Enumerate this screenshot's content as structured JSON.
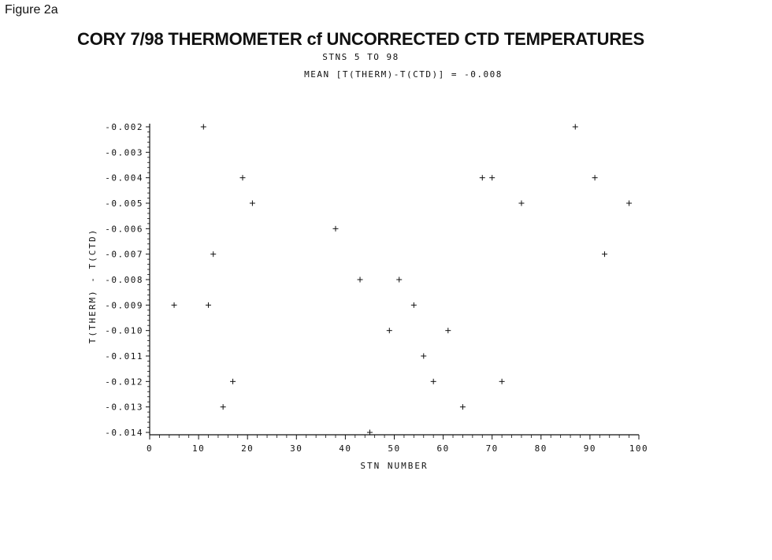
{
  "figure_label": "Figure 2a",
  "chart_data": {
    "type": "scatter",
    "title": "CORY 7/98 THERMOMETER cf UNCORRECTED CTD TEMPERATURES",
    "subtitle": "STNS 5 TO 98",
    "annotation": "MEAN [T(THERM)-T(CTD)] = -0.008",
    "xlabel": "STN NUMBER",
    "ylabel": "T(THERM) - T(CTD)",
    "xlim": [
      0,
      100
    ],
    "ylim": [
      -0.014,
      -0.002
    ],
    "x_ticks": [
      0,
      10,
      20,
      30,
      40,
      50,
      60,
      70,
      80,
      90,
      100
    ],
    "x_tick_labels": [
      "0",
      "10",
      "20",
      "30",
      "40",
      "50",
      "60",
      "70",
      "80",
      "90",
      "100"
    ],
    "y_ticks": [
      -0.002,
      -0.003,
      -0.004,
      -0.005,
      -0.006,
      -0.007,
      -0.008,
      -0.009,
      -0.01,
      -0.011,
      -0.012,
      -0.013,
      -0.014
    ],
    "y_tick_labels": [
      "-0.002",
      "-0.003",
      "-0.004",
      "-0.005",
      "-0.006",
      "-0.007",
      "-0.008",
      "-0.009",
      "-0.010",
      "-0.011",
      "-0.012",
      "-0.013",
      "-0.014"
    ],
    "marker": "+",
    "grid": false,
    "points": [
      {
        "x": 5,
        "y": -0.009
      },
      {
        "x": 11,
        "y": -0.002
      },
      {
        "x": 12,
        "y": -0.009
      },
      {
        "x": 13,
        "y": -0.007
      },
      {
        "x": 15,
        "y": -0.013
      },
      {
        "x": 17,
        "y": -0.012
      },
      {
        "x": 19,
        "y": -0.004
      },
      {
        "x": 21,
        "y": -0.005
      },
      {
        "x": 38,
        "y": -0.006
      },
      {
        "x": 43,
        "y": -0.008
      },
      {
        "x": 45,
        "y": -0.014
      },
      {
        "x": 49,
        "y": -0.01
      },
      {
        "x": 51,
        "y": -0.008
      },
      {
        "x": 54,
        "y": -0.009
      },
      {
        "x": 56,
        "y": -0.011
      },
      {
        "x": 58,
        "y": -0.012
      },
      {
        "x": 61,
        "y": -0.01
      },
      {
        "x": 64,
        "y": -0.013
      },
      {
        "x": 68,
        "y": -0.004
      },
      {
        "x": 70,
        "y": -0.004
      },
      {
        "x": 72,
        "y": -0.012
      },
      {
        "x": 76,
        "y": -0.005
      },
      {
        "x": 87,
        "y": -0.002
      },
      {
        "x": 91,
        "y": -0.004
      },
      {
        "x": 93,
        "y": -0.007
      },
      {
        "x": 98,
        "y": -0.005
      }
    ]
  }
}
